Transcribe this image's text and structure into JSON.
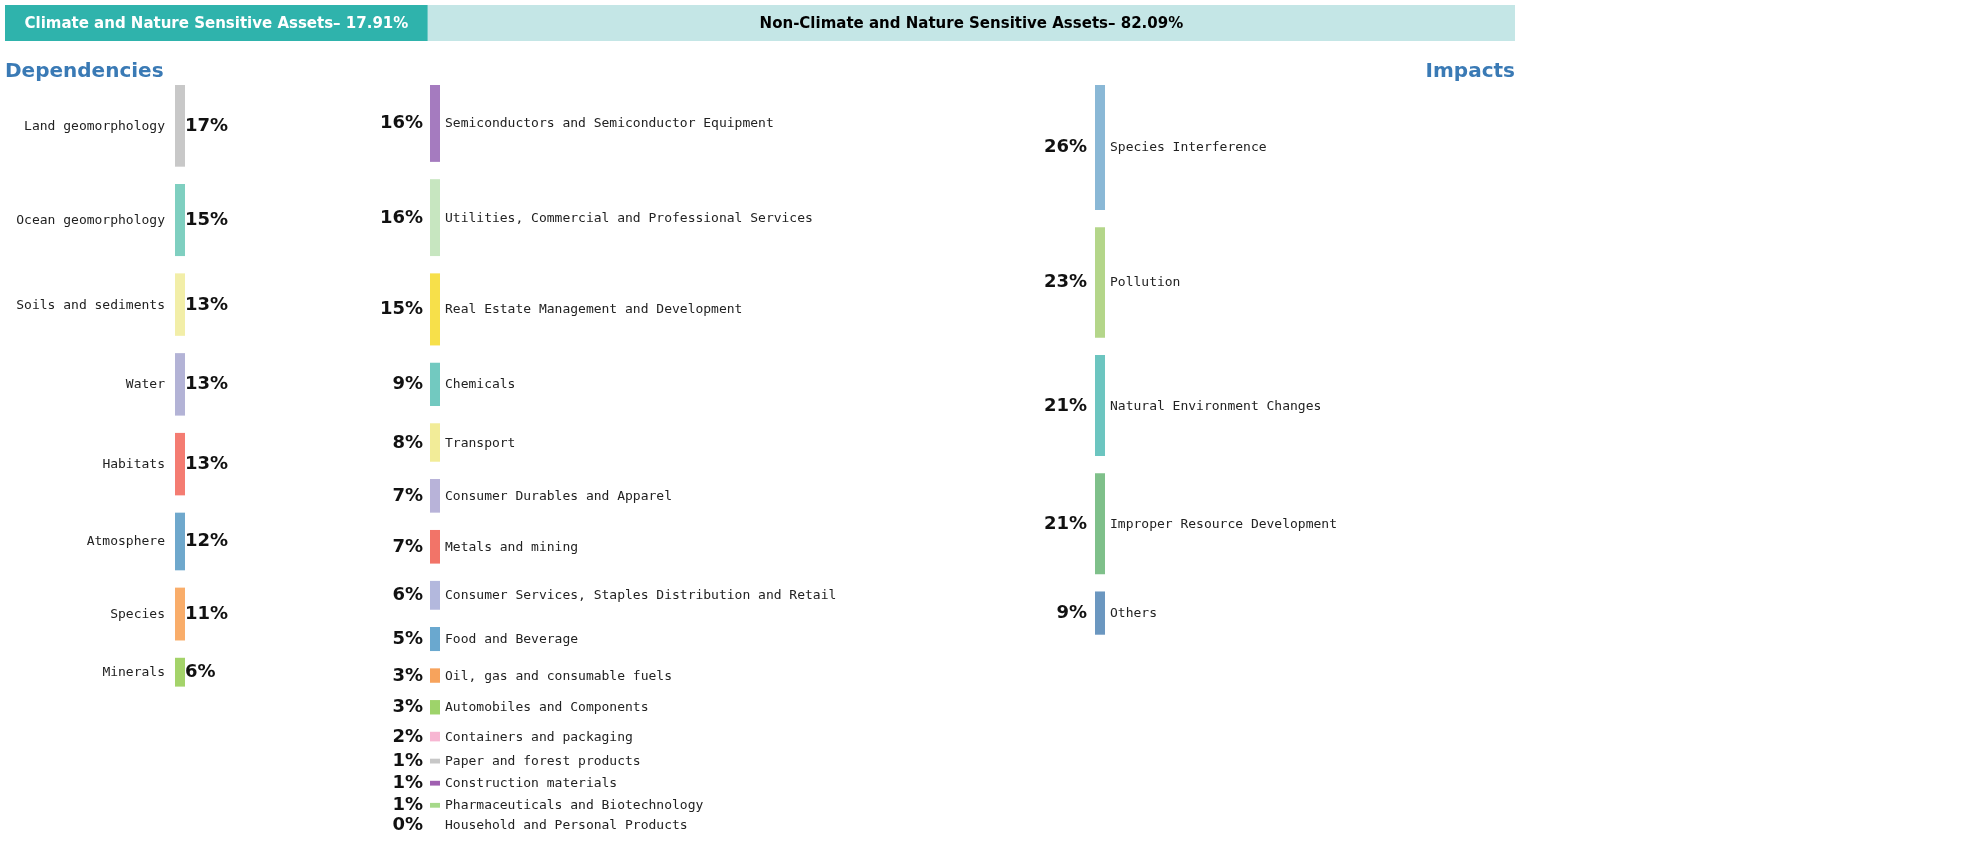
{
  "chart_data": [
    {
      "type": "other",
      "annotations": [
        "Climate and Nature Sensitive Assets– 17.91%",
        "Non-Climate and Nature Sensitive Assets– 82.09%"
      ]
    },
    {
      "type": "other",
      "title": "Dependencies",
      "categories": [
        "Land geomorphology",
        "Ocean geomorphology",
        "Soils and sediments",
        "Water",
        "Habitats",
        "Atmosphere",
        "Species",
        "Minerals"
      ],
      "values": [
        17,
        15,
        13,
        13,
        13,
        12,
        11,
        6
      ],
      "value_labels": [
        "17%",
        "15%",
        "13%",
        "13%",
        "13%",
        "12%",
        "11%",
        "6%"
      ],
      "colors": [
        "#c8c8c8",
        "#7fcfc0",
        "#f2eea8",
        "#b3b3d6",
        "#f47c72",
        "#6fa8cc",
        "#f9ad6a",
        "#a4d36a"
      ]
    },
    {
      "type": "other",
      "categories": [
        "Semiconductors and Semiconductor Equipment",
        "Utilities, Commercial and Professional Services",
        "Real Estate Management and Development",
        "Chemicals",
        "Transport",
        "Consumer Durables and Apparel",
        "Metals and mining",
        "Consumer Services, Staples Distribution and Retail",
        "Food and Beverage",
        "Oil, gas and consumable fuels",
        "Automobiles and Components",
        "Containers and packaging",
        "Paper and forest products",
        "Construction materials",
        "Pharmaceuticals and Biotechnology",
        "Household and Personal Products"
      ],
      "values": [
        16,
        16,
        15,
        9,
        8,
        7,
        7,
        6,
        5,
        3,
        3,
        2,
        1,
        1,
        1,
        0
      ],
      "value_labels": [
        "16%",
        "16%",
        "15%",
        "9%",
        "8%",
        "7%",
        "7%",
        "6%",
        "5%",
        "3%",
        "3%",
        "2%",
        "1%",
        "1%",
        "1%",
        "0%"
      ],
      "colors": [
        "#a57bbf",
        "#c7e6c0",
        "#f7e04a",
        "#72c9c0",
        "#f2ec98",
        "#b8b3d9",
        "#f27468",
        "#b3b8dd",
        "#6aa8cf",
        "#f7a35c",
        "#9ed36a",
        "#f7b6d2",
        "#c7c7c7",
        "#a060b0",
        "#a6d98a",
        "#f2f29a"
      ]
    },
    {
      "type": "other",
      "title": "Impacts",
      "categories": [
        "Species Interference",
        "Pollution",
        "Natural Environment Changes",
        "Improper Resource Development",
        "Others"
      ],
      "values": [
        26,
        23,
        21,
        21,
        9
      ],
      "value_labels": [
        "26%",
        "23%",
        "21%",
        "21%",
        "9%"
      ],
      "colors": [
        "#8ab8d6",
        "#b4d68a",
        "#6cc5c0",
        "#7fc08a",
        "#6b97c0"
      ]
    }
  ]
}
